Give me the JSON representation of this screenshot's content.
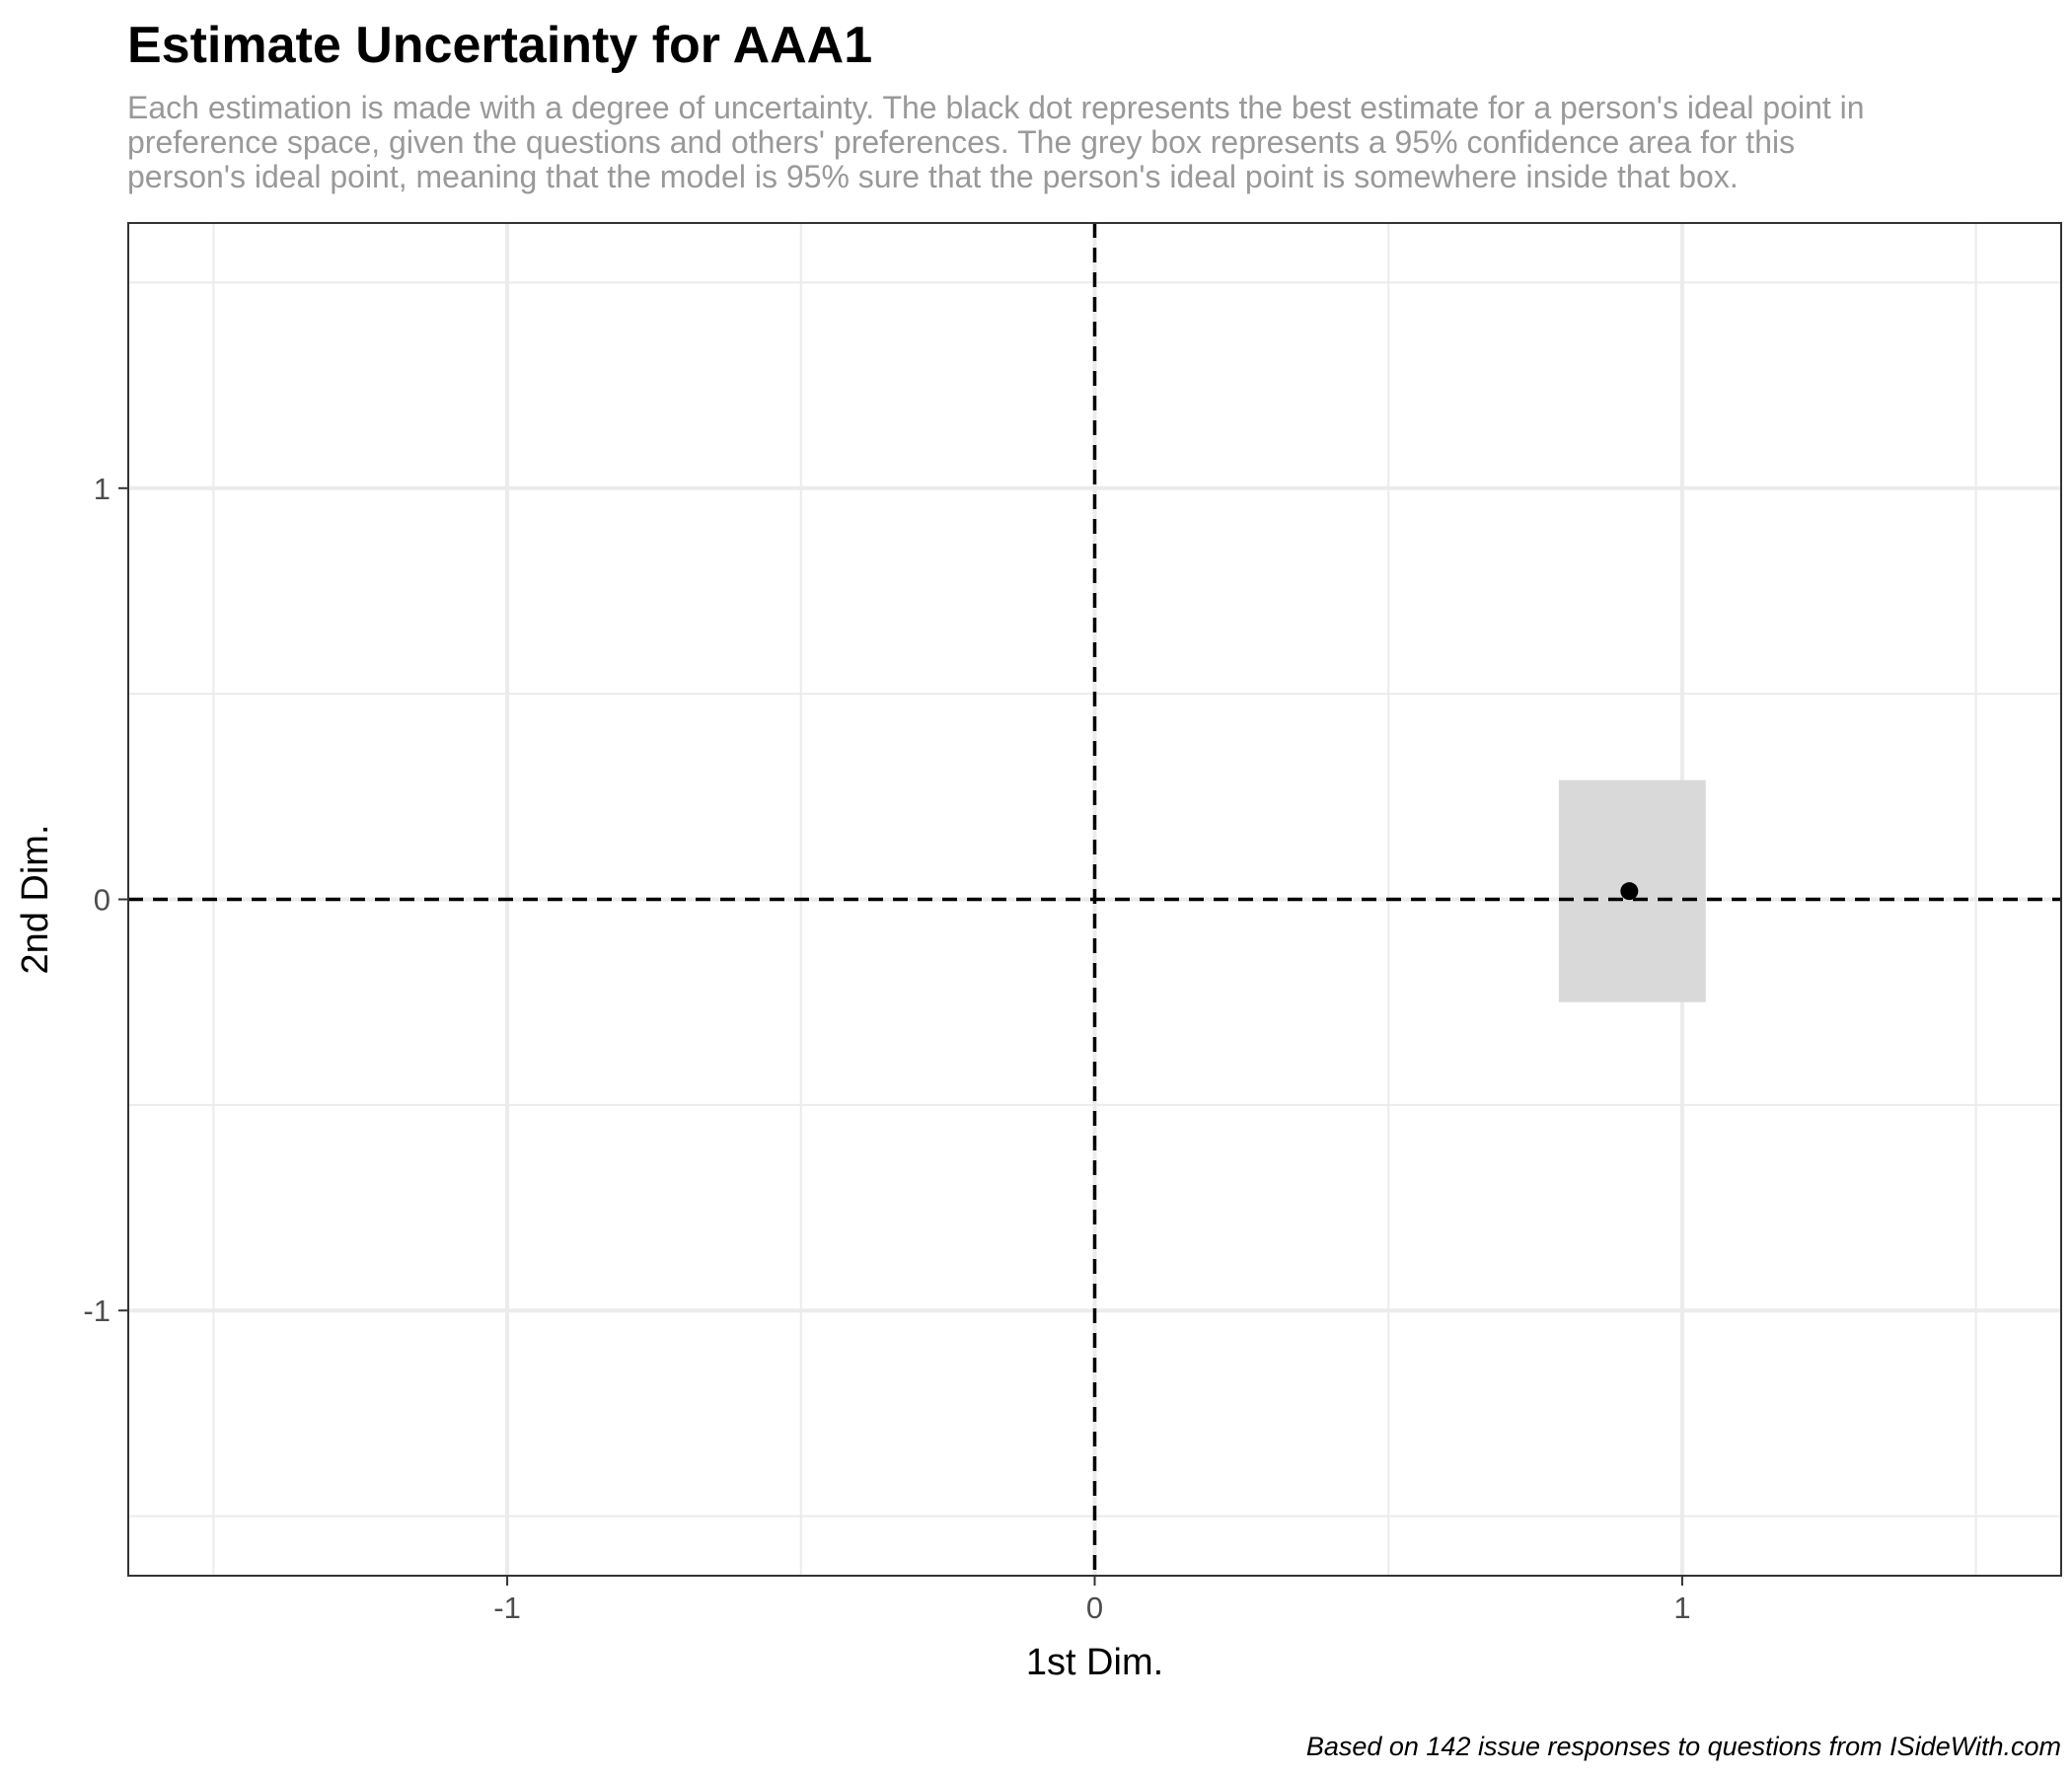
{
  "chart_data": {
    "type": "scatter",
    "title": "Estimate Uncertainty for AAA1",
    "subtitle": [
      "Each estimation is made with a degree of uncertainty. The black dot represents the best estimate for a person's ideal point in",
      "preference space, given the questions and others' preferences. The grey box represents a 95% confidence area for this",
      "person's ideal point, meaning that the model is 95% sure that the person's ideal point is somewhere inside that box."
    ],
    "caption": "Based on 142 issue responses to questions from ISideWith.com",
    "xlabel": "1st Dim.",
    "ylabel": "2nd Dim.",
    "xlim": [
      -1.645,
      1.645
    ],
    "ylim": [
      -1.645,
      1.645
    ],
    "x_ticks": [
      {
        "value": -1,
        "label": "-1"
      },
      {
        "value": 0,
        "label": "0"
      },
      {
        "value": 1,
        "label": "1"
      }
    ],
    "y_ticks": [
      {
        "value": 1,
        "label": "1"
      },
      {
        "value": 0,
        "label": "0"
      },
      {
        "value": -1,
        "label": "-1"
      }
    ],
    "x_minor_grid": [
      -1.5,
      -0.5,
      0.5,
      1.5
    ],
    "y_minor_grid": [
      1.5,
      0.5,
      -0.5,
      -1.5
    ],
    "grid": true,
    "reference_lines": {
      "x": 0,
      "y": 0,
      "style": "dashed"
    },
    "point": {
      "x": 0.91,
      "y": 0.02
    },
    "confidence_box": {
      "x_min": 0.79,
      "x_max": 1.04,
      "y_min": -0.25,
      "y_max": 0.29
    },
    "colors": {
      "point": "#000000",
      "box": "#d9d9d9",
      "grid": "#ebebeb",
      "reference": "#000000",
      "panel_border": "#333333",
      "subtitle": "#999999"
    }
  }
}
